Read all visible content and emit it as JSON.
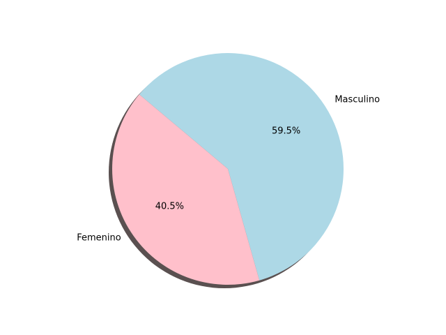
{
  "chart_data": {
    "type": "pie",
    "slices": [
      {
        "label": "Masculino",
        "value": 59.5,
        "pct_label": "59.5%",
        "color": "#add8e6"
      },
      {
        "label": "Femenino",
        "value": 40.5,
        "pct_label": "40.5%",
        "color": "#ffc0cb"
      }
    ],
    "shadow": true
  }
}
